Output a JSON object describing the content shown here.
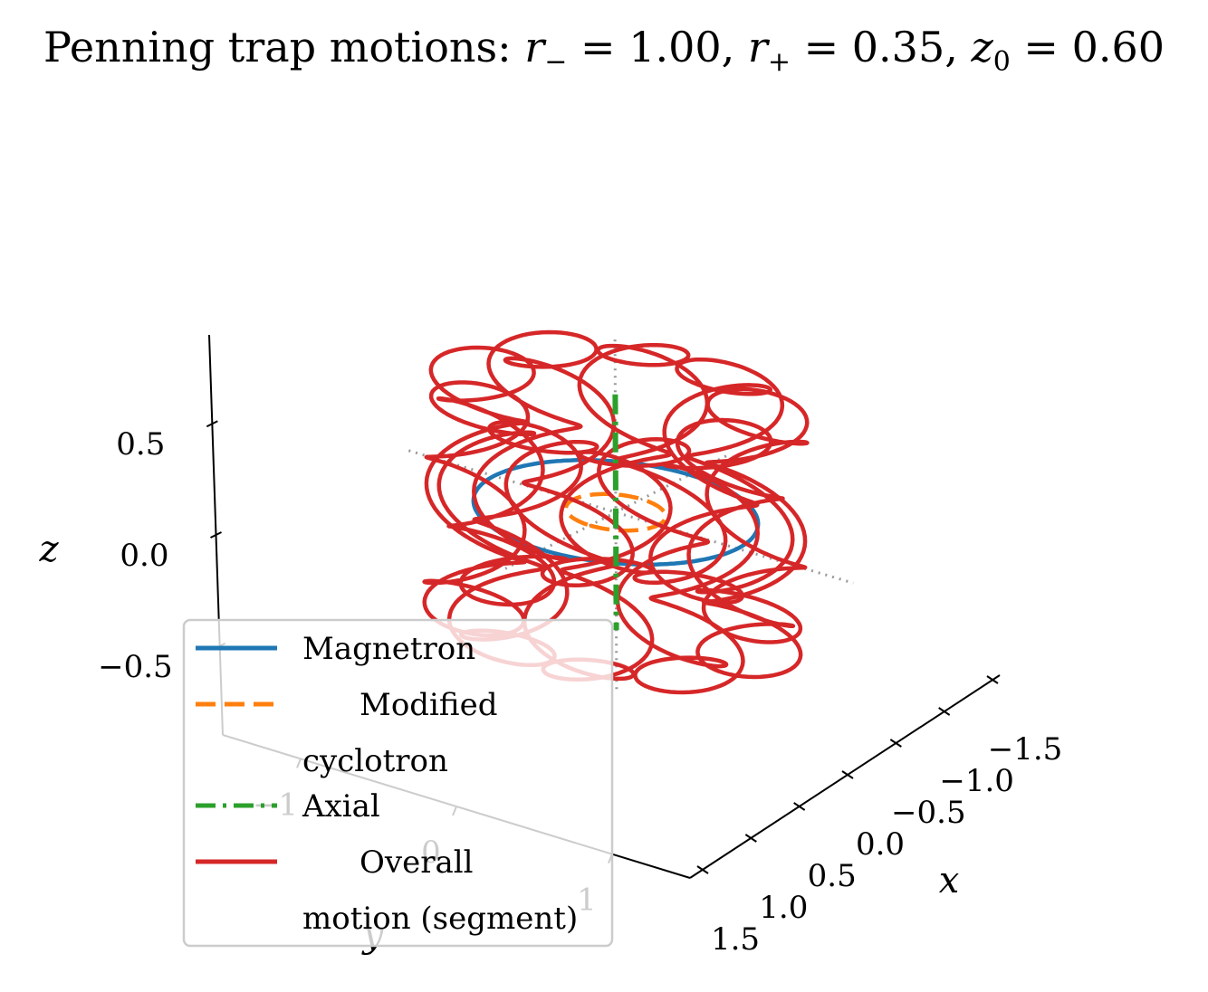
{
  "chart_data": {
    "type": "line",
    "projection": "3d",
    "title": {
      "base": "Penning trap motions: ",
      "parts": [
        {
          "sym": "r",
          "sub": "−",
          "eq": " = 1.00, "
        },
        {
          "sym": "r",
          "sub": "+",
          "eq": " = 0.35, "
        },
        {
          "sym": "z",
          "sub": "0",
          "eq": " = 0.60"
        }
      ]
    },
    "parameters": {
      "r_minus": 1.0,
      "r_plus": 0.35,
      "z0": 0.6
    },
    "xlabel": "x",
    "ylabel": "y",
    "zlabel": "z",
    "xlim": [
      -1.5,
      1.5
    ],
    "ylim": [
      -1.5,
      1.5
    ],
    "zlim": [
      -0.9,
      0.9
    ],
    "x_ticks": [
      -1.5,
      -1.0,
      -0.5,
      0.0,
      0.5,
      1.0,
      1.5
    ],
    "x_tick_labels": [
      "−1.5",
      "−1.0",
      "−0.5",
      "0.0",
      "0.5",
      "1.0",
      "1.5"
    ],
    "y_ticks": [
      -1,
      0,
      1
    ],
    "y_tick_labels": [
      "−1",
      "0",
      "1"
    ],
    "z_ticks": [
      -0.5,
      0.0,
      0.5
    ],
    "z_tick_labels": [
      "−0.5",
      "0.0",
      "0.5"
    ],
    "legend_position": "lower-left",
    "series": [
      {
        "name": "Magnetron",
        "color": "#1f77b4",
        "style": "solid",
        "equation": "x = r_minus·cos(t), y = r_minus·sin(t), z = 0",
        "t_range": [
          0,
          6.2832
        ]
      },
      {
        "name": "Modified cyclotron",
        "color": "#ff7f0e",
        "style": "dashed",
        "equation": "x = r_plus·cos(t), y = r_plus·sin(t), z = 0",
        "t_range": [
          0,
          6.2832
        ]
      },
      {
        "name": "Axial",
        "color": "#2ca02c",
        "style": "dashdot",
        "equation": "x = 0, y = 0, z = z0·cos(t)",
        "t_range": [
          0,
          6.2832
        ]
      },
      {
        "name": "Overall motion (segment)",
        "color": "#d62728",
        "style": "solid",
        "equation": "x = r_minus·cos(ω_m t) + r_plus·cos(ω_c t), y = r_minus·sin(ω_m t) + r_plus·sin(ω_c t), z = z0·cos(ω_z t)",
        "omega_m": 1.0,
        "omega_c": 47.0,
        "omega_z": 9.0,
        "t_range": [
          0,
          6.2832
        ]
      }
    ],
    "reference_lines": {
      "color": "#999999",
      "style": "dotted",
      "description": "x, y, z axes through origin"
    }
  }
}
